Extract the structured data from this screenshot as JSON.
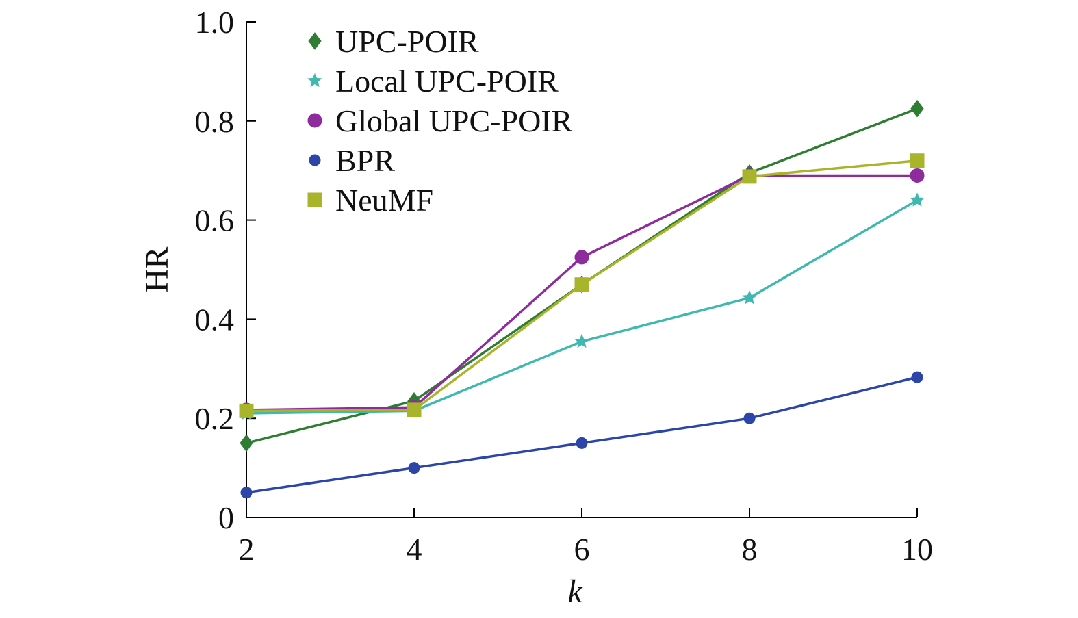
{
  "chart_data": {
    "type": "line",
    "xlabel": "k",
    "ylabel": "HR",
    "x": [
      2,
      4,
      6,
      8,
      10
    ],
    "x_ticks": [
      "2",
      "4",
      "6",
      "8",
      "10"
    ],
    "y_ticks": [
      "0",
      "0.2",
      "0.4",
      "0.6",
      "0.8",
      "1.0"
    ],
    "xlim": [
      2,
      10
    ],
    "ylim": [
      0,
      1.0
    ],
    "grid": false,
    "legend_position": "top-left",
    "series": [
      {
        "name": "UPC-POIR",
        "color": "#2e7d32",
        "marker": "diamond",
        "values": [
          0.15,
          0.235,
          0.47,
          0.695,
          0.825
        ]
      },
      {
        "name": "Local UPC-POIR",
        "color": "#3fb8b0",
        "marker": "star",
        "values": [
          0.21,
          0.215,
          0.355,
          0.443,
          0.64
        ]
      },
      {
        "name": "Global UPC-POIR",
        "color": "#8e2c9e",
        "marker": "circle",
        "values": [
          0.217,
          0.222,
          0.525,
          0.69,
          0.69
        ]
      },
      {
        "name": "BPR",
        "color": "#2b45a8",
        "marker": "circle-small",
        "values": [
          0.05,
          0.1,
          0.15,
          0.2,
          0.283
        ]
      },
      {
        "name": "NeuMF",
        "color": "#a8b42a",
        "marker": "square",
        "values": [
          0.215,
          0.217,
          0.47,
          0.688,
          0.72
        ]
      }
    ]
  }
}
